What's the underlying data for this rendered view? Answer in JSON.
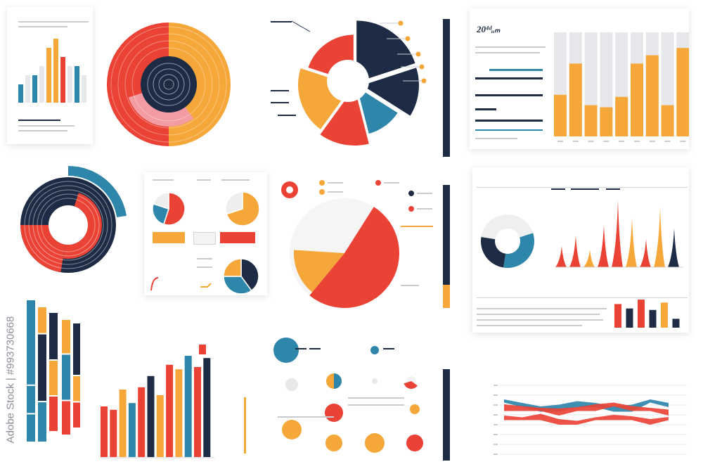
{
  "colors": {
    "navy": "#1d2b44",
    "orange": "#f5a73a",
    "red": "#ea4335",
    "teal": "#2f86ab",
    "grey": "#e5e7ea",
    "pink": "#f39ca4"
  },
  "texts": {
    "p1_title": "",
    "p3_title": "",
    "p3_year": "20⁴ᵈᵤₘ",
    "p6_title": "",
    "p8_title": "",
    "p8_sub": "",
    "p10_title": "",
    "watermark": "Adobe Stock | #993730668"
  },
  "chart_data": [
    {
      "type": "bar",
      "id": "p1-bars",
      "series": [
        {
          "name": "",
          "values": [
            2,
            3,
            3,
            4,
            6,
            7,
            5,
            4,
            4,
            3
          ]
        }
      ]
    },
    {
      "type": "pie",
      "id": "p1-radial",
      "values": [
        50,
        50
      ]
    },
    {
      "type": "pie",
      "id": "p2-pie",
      "values": [
        20,
        14,
        12,
        14,
        20,
        20
      ]
    },
    {
      "type": "bar",
      "id": "p3-stacked",
      "categories": [
        "",
        "",
        "",
        "",
        "",
        "",
        "",
        "",
        ""
      ],
      "values": [
        40,
        70,
        30,
        28,
        38,
        70,
        78,
        30,
        85
      ],
      "ylim": [
        0,
        100
      ]
    },
    {
      "type": "pie",
      "id": "p4-ring",
      "values": [
        62,
        38
      ]
    },
    {
      "type": "pie",
      "id": "p5-minis",
      "values": [
        [
          55,
          25,
          20
        ],
        [
          70,
          30
        ],
        [
          40,
          35,
          25
        ]
      ]
    },
    {
      "type": "pie",
      "id": "p6-pie",
      "values": [
        40,
        60
      ]
    },
    {
      "type": "pie",
      "id": "p7-donut",
      "values": [
        35,
        40,
        25
      ]
    },
    {
      "type": "area",
      "id": "p7-spikes",
      "values": [
        30,
        45,
        25,
        60,
        95,
        70,
        40,
        85,
        55
      ]
    },
    {
      "type": "bar",
      "id": "p7-bars",
      "values": [
        80,
        65,
        95,
        60,
        85,
        30
      ]
    },
    {
      "type": "bar",
      "id": "p8-hbars",
      "values": [
        [
          60,
          20,
          20
        ],
        [
          20,
          50,
          30
        ],
        [
          40,
          30,
          30
        ],
        [
          30,
          40,
          30
        ],
        [
          50,
          25,
          25
        ]
      ]
    },
    {
      "type": "bar",
      "id": "p9-bars",
      "values": [
        45,
        42,
        60,
        48,
        62,
        72,
        55,
        82,
        78,
        90,
        80,
        88
      ]
    },
    {
      "type": "scatter",
      "id": "p10-bubbles",
      "values": [
        9,
        11,
        4,
        7,
        13,
        14,
        7,
        12,
        14,
        12,
        18
      ]
    },
    {
      "type": "area",
      "id": "p11-streams",
      "series": [
        [
          40,
          30,
          20,
          25,
          35,
          30,
          20,
          25,
          40,
          30
        ],
        [
          50,
          45,
          40,
          38,
          42,
          50,
          55,
          45,
          40,
          35
        ],
        [
          70,
          65,
          75,
          60,
          55,
          65,
          72,
          68,
          60,
          66
        ]
      ]
    }
  ]
}
